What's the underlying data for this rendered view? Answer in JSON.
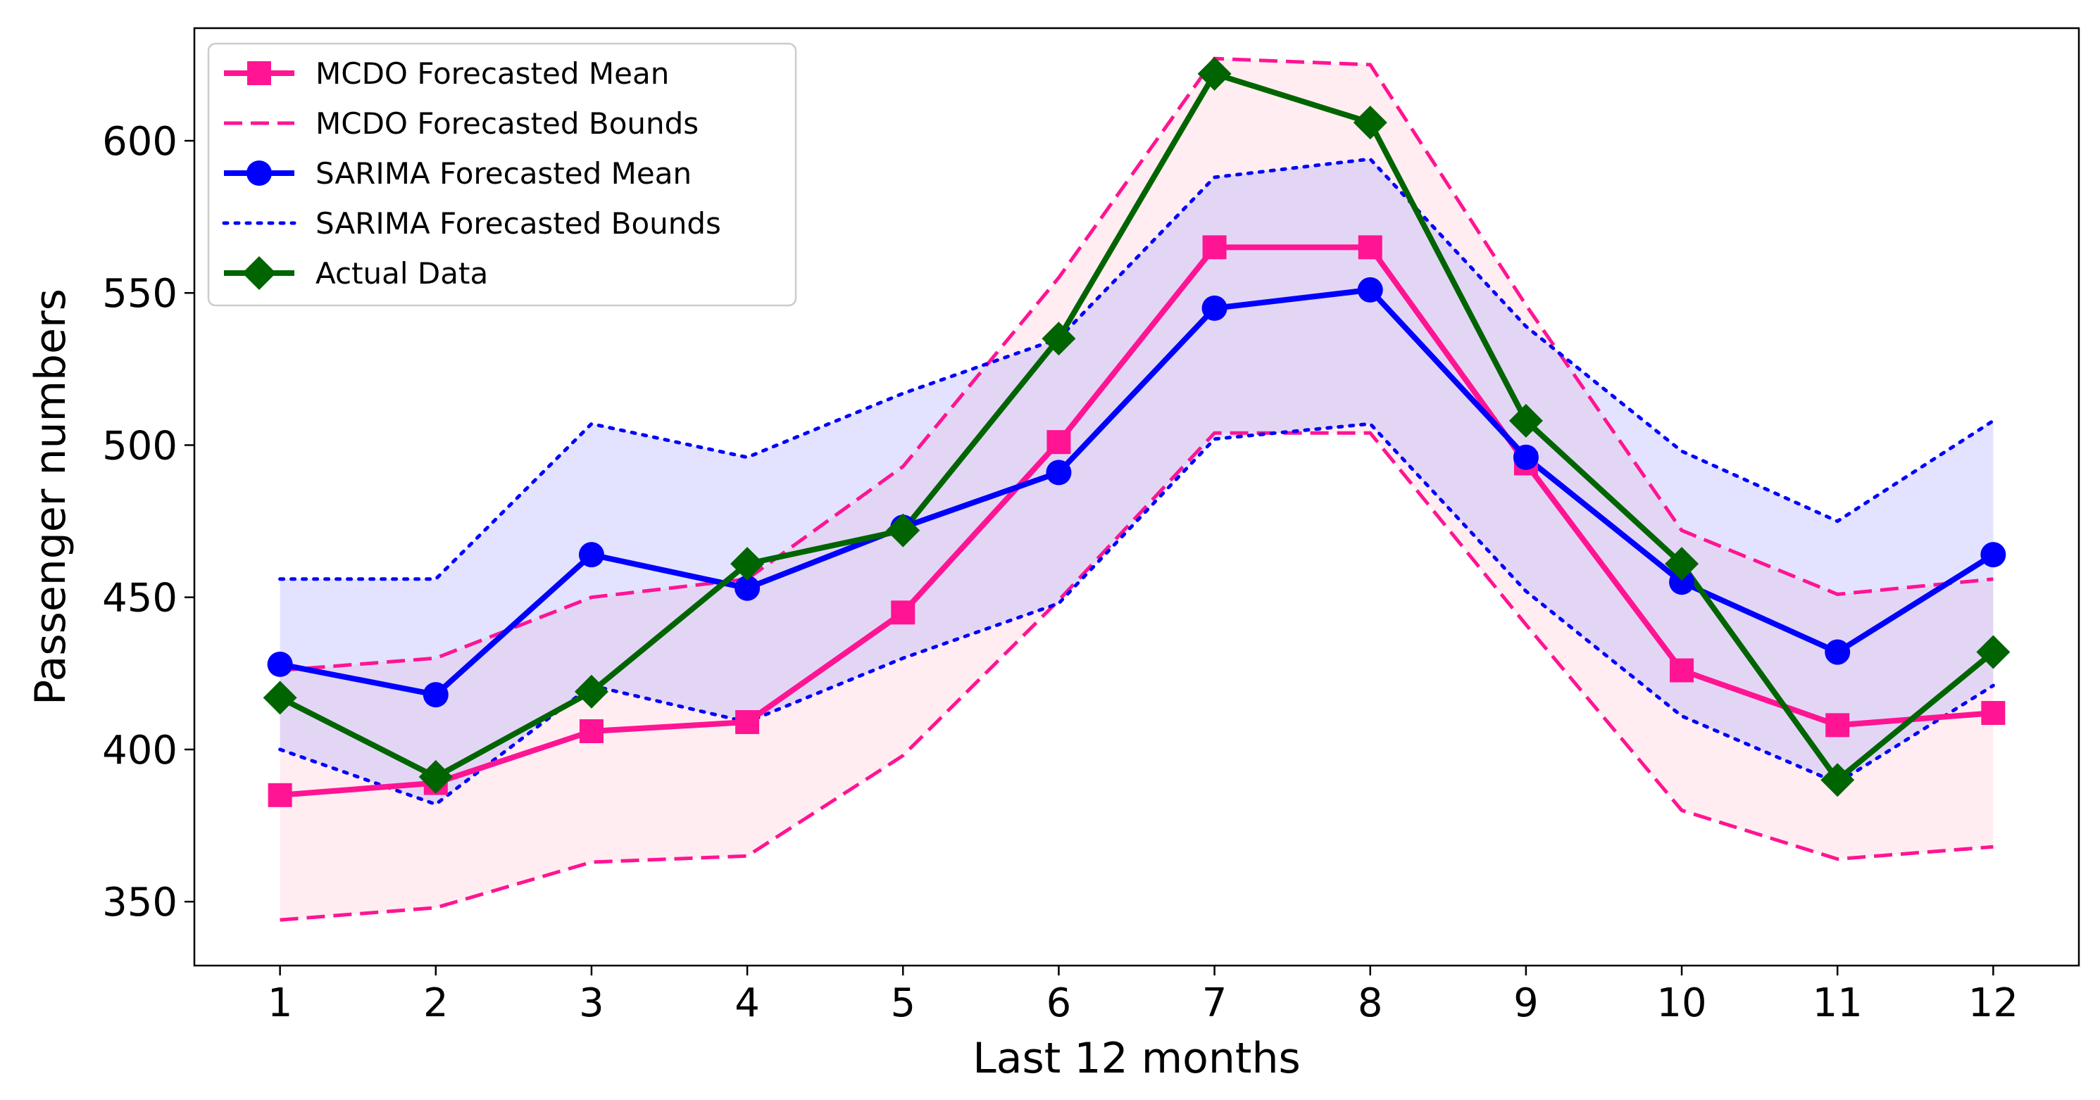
{
  "chart_data": {
    "type": "line",
    "title": "",
    "xlabel": "Last 12 months",
    "ylabel": "Passenger numbers",
    "x": [
      1,
      2,
      3,
      4,
      5,
      6,
      7,
      8,
      9,
      10,
      11,
      12
    ],
    "xlim": [
      0.45,
      12.55
    ],
    "ylim": [
      329,
      637
    ],
    "yticks": [
      350,
      400,
      450,
      500,
      550,
      600
    ],
    "grid": false,
    "legend_position": "top-left",
    "series": [
      {
        "name": "MCDO Forecasted Mean",
        "style": "solid-square",
        "color": "#ff1493",
        "values": [
          385,
          389,
          406,
          409,
          445,
          501,
          565,
          565,
          494,
          426,
          408,
          412
        ]
      },
      {
        "name": "MCDO Forecasted Bounds",
        "style": "dashed-band",
        "color": "#ff1493",
        "fill": "#ffc0cb",
        "lower": [
          344,
          348,
          363,
          365,
          398,
          449,
          504,
          504,
          441,
          380,
          364,
          368
        ],
        "upper": [
          426,
          430,
          450,
          456,
          493,
          555,
          627,
          625,
          546,
          472,
          451,
          456
        ]
      },
      {
        "name": "SARIMA Forecasted Mean",
        "style": "solid-circle",
        "color": "#0000ff",
        "values": [
          428,
          418,
          464,
          453,
          473,
          491,
          545,
          551,
          496,
          455,
          432,
          464
        ]
      },
      {
        "name": "SARIMA Forecasted Bounds",
        "style": "dotted-band",
        "color": "#0000ff",
        "fill": "#9999ff",
        "lower": [
          400,
          382,
          421,
          409,
          430,
          448,
          502,
          507,
          452,
          411,
          389,
          421
        ],
        "upper": [
          456,
          456,
          507,
          496,
          517,
          535,
          588,
          594,
          539,
          498,
          475,
          508
        ]
      },
      {
        "name": "Actual Data",
        "style": "solid-diamond",
        "color": "#006400",
        "values": [
          417,
          391,
          419,
          461,
          472,
          535,
          622,
          606,
          508,
          461,
          390,
          432
        ]
      }
    ]
  }
}
